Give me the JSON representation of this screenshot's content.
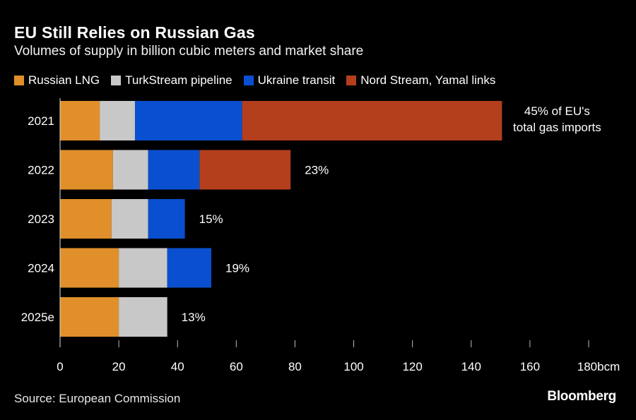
{
  "title": "EU Still Relies on Russian Gas",
  "subtitle": "Volumes of supply in billion cubic meters and market share",
  "source": "Source: European Commission",
  "brand": "Bloomberg",
  "chart_data": {
    "type": "bar",
    "orientation": "horizontal",
    "stacked": true,
    "categories": [
      "2021",
      "2022",
      "2023",
      "2024",
      "2025e"
    ],
    "series": [
      {
        "name": "Russian LNG",
        "color": "#e08f2a",
        "values": [
          13.5,
          18,
          17.5,
          20,
          20
        ]
      },
      {
        "name": "TurkStream pipeline",
        "color": "#c8c8c8",
        "values": [
          12,
          12,
          12.5,
          16.5,
          16.5
        ]
      },
      {
        "name": "Ukraine transit",
        "color": "#0a4fcf",
        "values": [
          36.5,
          17.5,
          12.5,
          15,
          0
        ]
      },
      {
        "name": "Nord Stream, Yamal links",
        "color": "#b33f1d",
        "values": [
          88.5,
          31,
          0,
          0,
          0
        ]
      }
    ],
    "annotations": [
      [
        "45% of EU's",
        "total gas imports"
      ],
      [
        "23%"
      ],
      [
        "15%"
      ],
      [
        "19%"
      ],
      [
        "13%"
      ]
    ],
    "xlim": [
      0,
      180
    ],
    "xticks": [
      0,
      20,
      40,
      60,
      80,
      100,
      120,
      140,
      160,
      180
    ],
    "xunit": "bcm",
    "grid": false,
    "legend_position": "top"
  }
}
